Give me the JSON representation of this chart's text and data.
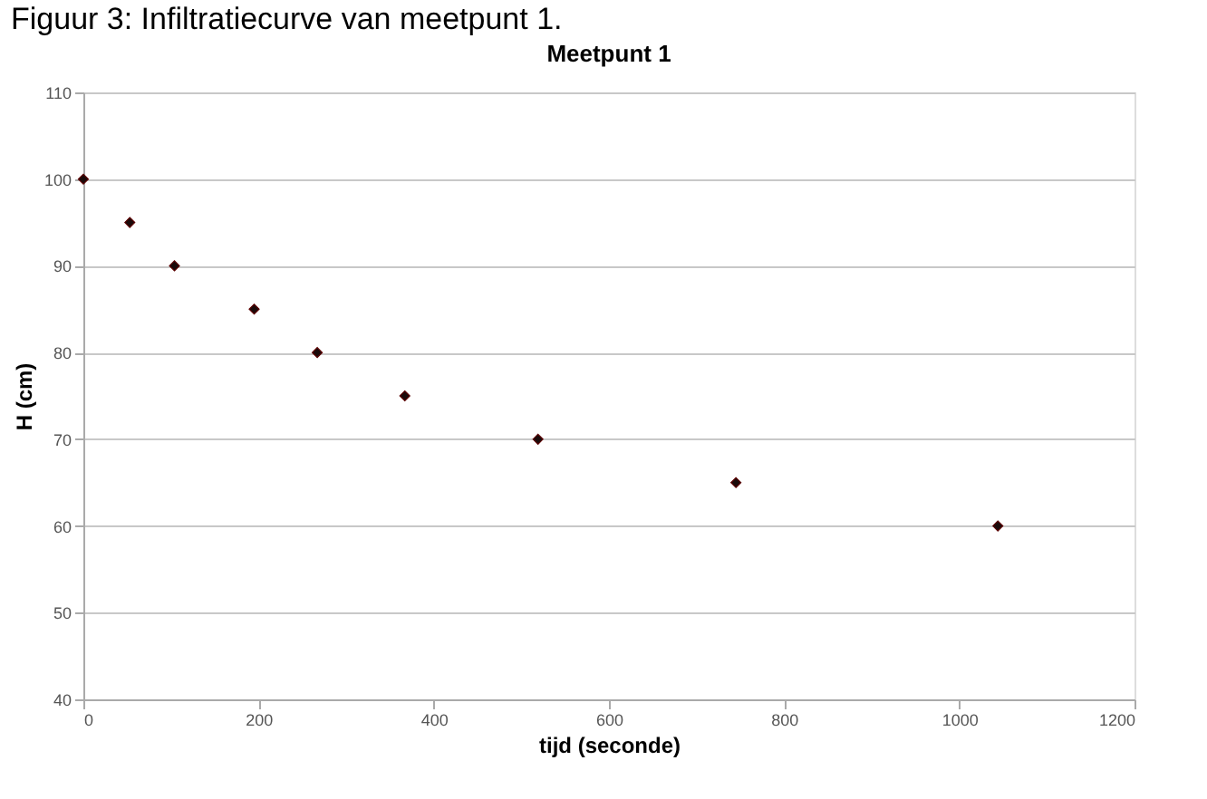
{
  "chart_data": {
    "type": "scatter",
    "title": "Meetpunt 1",
    "annotations": [
      "Figuur 3: Infiltratiecurve van meetpunt 1."
    ],
    "xlabel": "tijd (seconde)",
    "ylabel": "H (cm)",
    "x": [
      0,
      53,
      104,
      195,
      267,
      367,
      519,
      745,
      1044
    ],
    "series": [
      {
        "color": "#1a0a0a",
        "values": [
          100,
          95,
          90,
          85,
          80,
          75,
          70,
          65,
          60
        ]
      }
    ],
    "xlim": [
      0,
      1200
    ],
    "xticks": [
      0,
      200,
      400,
      600,
      800,
      1000,
      1200
    ],
    "ylim": [
      40,
      110
    ],
    "yticks": [
      40,
      50,
      60,
      70,
      80,
      90,
      100,
      110
    ],
    "grid": "y",
    "marker": "diamond"
  }
}
